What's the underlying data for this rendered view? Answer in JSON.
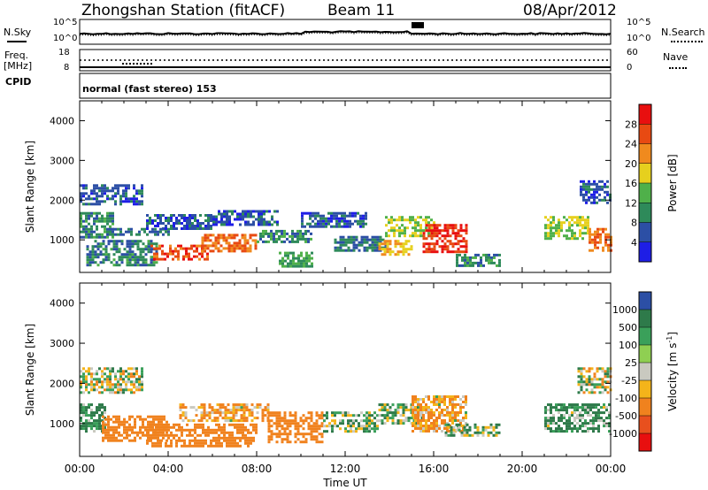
{
  "header": {
    "station": "Zhongshan Station (fitACF)",
    "beam": "Beam 11",
    "date": "08/Apr/2012"
  },
  "aux_panels": {
    "nsky_label": "N.Sky",
    "nsearch_label": "N.Search",
    "noise_ticks_left": [
      "10^5",
      "10^0"
    ],
    "noise_ticks_right": [
      "10^5",
      "10^0"
    ],
    "freq_label": "Freq.",
    "freq_unit": "[MHz]",
    "freq_ticks": [
      "18",
      "8"
    ],
    "nave_label": "Nave",
    "nave_ticks": [
      "60",
      "0"
    ],
    "cpid_label": "CPID",
    "cpid_text": "normal (fast stereo) 153"
  },
  "colors": {
    "power_scale": [
      "#1e1ee6",
      "#2c4fa5",
      "#2e8a5a",
      "#4fb04a",
      "#e6d01e",
      "#f08a1e",
      "#e84a12",
      "#e80f0f"
    ],
    "velocity_scale": [
      "#2c4fa5",
      "#2e7a4a",
      "#3aa05a",
      "#8fcf52",
      "#c9c9c0",
      "#f4b41a",
      "#f0821e",
      "#e8501e",
      "#e80f0f"
    ]
  },
  "chart_data": [
    {
      "type": "heatmap",
      "title": "",
      "xlabel": "Time UT",
      "ylabel": "Slant Range [km]",
      "xlim": [
        "00:00",
        "24:00"
      ],
      "x_ticks": [
        "00:00",
        "04:00",
        "08:00",
        "12:00",
        "16:00",
        "20:00",
        "00:00"
      ],
      "ylim": [
        180,
        4500
      ],
      "y_ticks": [
        "1000",
        "2000",
        "3000",
        "4000"
      ],
      "y_tick_values": [
        1000,
        2000,
        3000,
        4000
      ],
      "colorbar": {
        "label": "Power [dB]",
        "ticks": [
          "4",
          "8",
          "12",
          "16",
          "20",
          "24",
          "28"
        ],
        "range": [
          0,
          32
        ]
      },
      "value_key": "Power [dB]",
      "regions": [
        {
          "t": [
            0.0,
            2.8
          ],
          "r": [
            1900,
            2400
          ],
          "v": 6
        },
        {
          "t": [
            0.0,
            1.5
          ],
          "r": [
            1050,
            1700
          ],
          "v": 10
        },
        {
          "t": [
            0.3,
            3.5
          ],
          "r": [
            350,
            1000
          ],
          "v": 9
        },
        {
          "t": [
            1.2,
            4.0
          ],
          "r": [
            1100,
            1300
          ],
          "v": 8
        },
        {
          "t": [
            3.0,
            6.0
          ],
          "r": [
            1300,
            1650
          ],
          "v": 6
        },
        {
          "t": [
            3.2,
            5.8
          ],
          "r": [
            480,
            880
          ],
          "v": 26
        },
        {
          "t": [
            5.5,
            8.0
          ],
          "r": [
            700,
            1150
          ],
          "v": 24
        },
        {
          "t": [
            6.0,
            9.0
          ],
          "r": [
            1400,
            1750
          ],
          "v": 6
        },
        {
          "t": [
            8.0,
            10.5
          ],
          "r": [
            950,
            1250
          ],
          "v": 10
        },
        {
          "t": [
            9.0,
            10.5
          ],
          "r": [
            300,
            700
          ],
          "v": 12
        },
        {
          "t": [
            10.0,
            13.0
          ],
          "r": [
            1350,
            1700
          ],
          "v": 6
        },
        {
          "t": [
            11.5,
            13.8
          ],
          "r": [
            700,
            1100
          ],
          "v": 8
        },
        {
          "t": [
            13.5,
            15.0
          ],
          "r": [
            650,
            1000
          ],
          "v": 20
        },
        {
          "t": [
            13.8,
            16.0
          ],
          "r": [
            1100,
            1600
          ],
          "v": 16
        },
        {
          "t": [
            15.5,
            17.5
          ],
          "r": [
            700,
            1400
          ],
          "v": 28
        },
        {
          "t": [
            17.0,
            19.0
          ],
          "r": [
            350,
            650
          ],
          "v": 10
        },
        {
          "t": [
            21.0,
            23.0
          ],
          "r": [
            1000,
            1600
          ],
          "v": 16
        },
        {
          "t": [
            23.0,
            24.0
          ],
          "r": [
            700,
            1300
          ],
          "v": 24
        },
        {
          "t": [
            22.6,
            24.0
          ],
          "r": [
            1900,
            2500
          ],
          "v": 6
        }
      ]
    },
    {
      "type": "heatmap",
      "title": "",
      "xlabel": "Time UT",
      "ylabel": "Slant Range [km]",
      "xlim": [
        "00:00",
        "24:00"
      ],
      "x_ticks": [
        "00:00",
        "04:00",
        "08:00",
        "12:00",
        "16:00",
        "20:00",
        "00:00"
      ],
      "ylim": [
        180,
        4500
      ],
      "y_ticks": [
        "1000",
        "2000",
        "3000",
        "4000"
      ],
      "y_tick_values": [
        1000,
        2000,
        3000,
        4000
      ],
      "colorbar": {
        "label": "Velocity [m s-1]",
        "ticks": [
          "1000",
          "500",
          "100",
          "25",
          "-25",
          "-100",
          "-500",
          "-1000"
        ]
      },
      "value_key": "Velocity [m s-1]",
      "regions": [
        {
          "t": [
            0.0,
            2.8
          ],
          "r": [
            1800,
            2400
          ],
          "v": 0
        },
        {
          "t": [
            0.0,
            1.2
          ],
          "r": [
            800,
            1500
          ],
          "v": 150
        },
        {
          "t": [
            1.0,
            4.0
          ],
          "r": [
            600,
            1200
          ],
          "v": -300
        },
        {
          "t": [
            3.0,
            8.0
          ],
          "r": [
            450,
            1000
          ],
          "v": -300
        },
        {
          "t": [
            4.5,
            8.5
          ],
          "r": [
            1100,
            1500
          ],
          "v": -120
        },
        {
          "t": [
            8.5,
            11.0
          ],
          "r": [
            550,
            1300
          ],
          "v": -300
        },
        {
          "t": [
            11.0,
            13.5
          ],
          "r": [
            800,
            1300
          ],
          "v": 60
        },
        {
          "t": [
            13.5,
            15.5
          ],
          "r": [
            1000,
            1500
          ],
          "v": 60
        },
        {
          "t": [
            15.0,
            17.5
          ],
          "r": [
            800,
            1700
          ],
          "v": -120
        },
        {
          "t": [
            16.5,
            19.0
          ],
          "r": [
            700,
            1000
          ],
          "v": 60
        },
        {
          "t": [
            21.0,
            24.0
          ],
          "r": [
            800,
            1500
          ],
          "v": 120
        },
        {
          "t": [
            22.5,
            24.0
          ],
          "r": [
            1800,
            2400
          ],
          "v": 0
        }
      ]
    }
  ]
}
